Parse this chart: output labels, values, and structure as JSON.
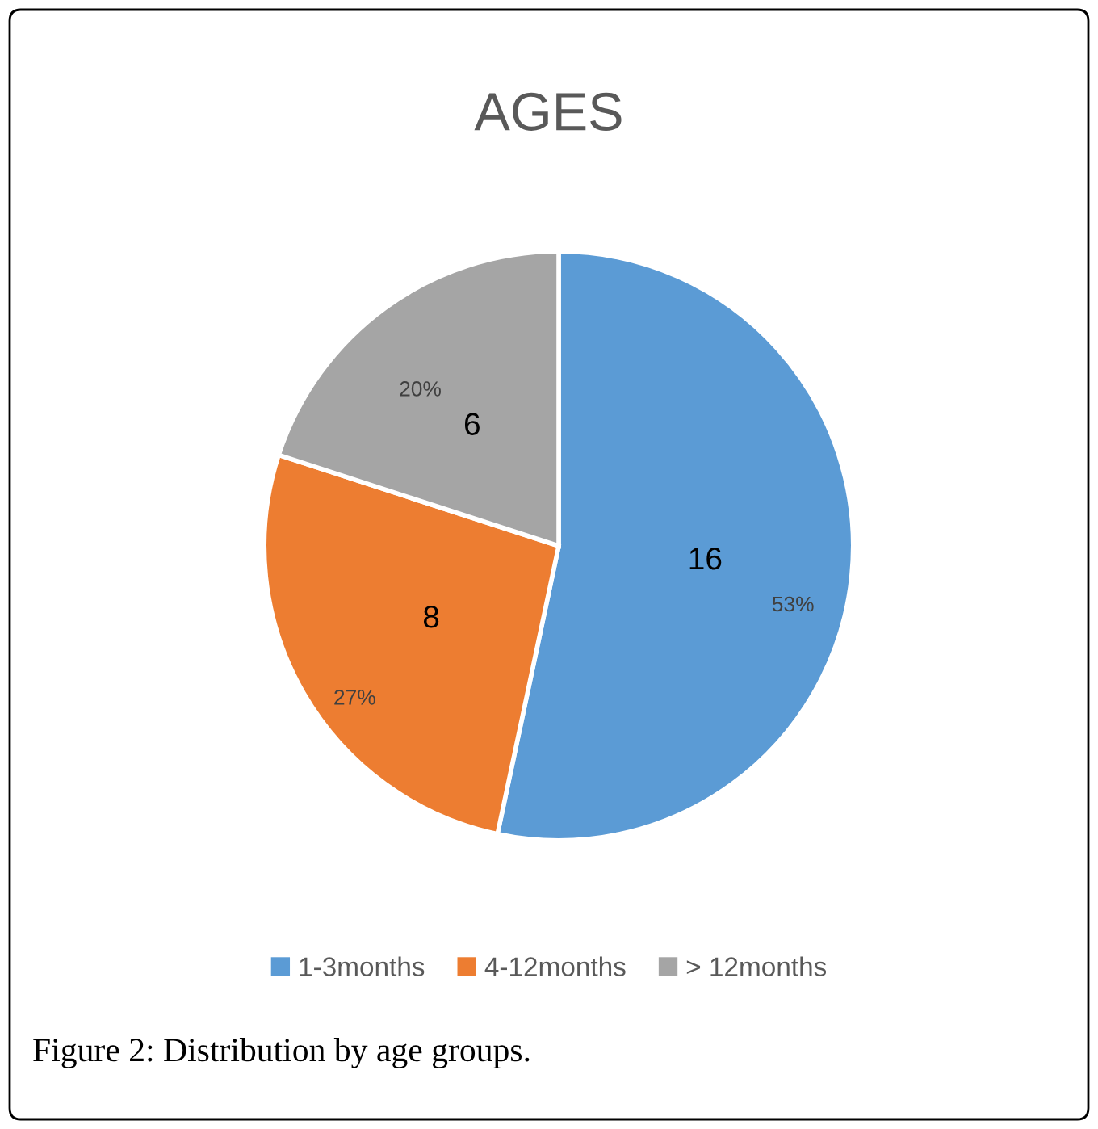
{
  "chart_data": {
    "type": "pie",
    "title": "AGES",
    "categories": [
      "1-3months",
      "4-12months",
      "> 12months"
    ],
    "values": [
      16,
      8,
      6
    ],
    "colors": [
      "#5b9bd5",
      "#ed7d31",
      "#a5a5a5"
    ],
    "data_labels": true,
    "legend": "bottom",
    "annotations": [
      {
        "text": "53%",
        "x": "1-3months"
      },
      {
        "text": "27%",
        "x": "4-12months"
      },
      {
        "text": "20%",
        "x": "> 12months"
      },
      "Figure 2: Distribution by age groups."
    ]
  }
}
